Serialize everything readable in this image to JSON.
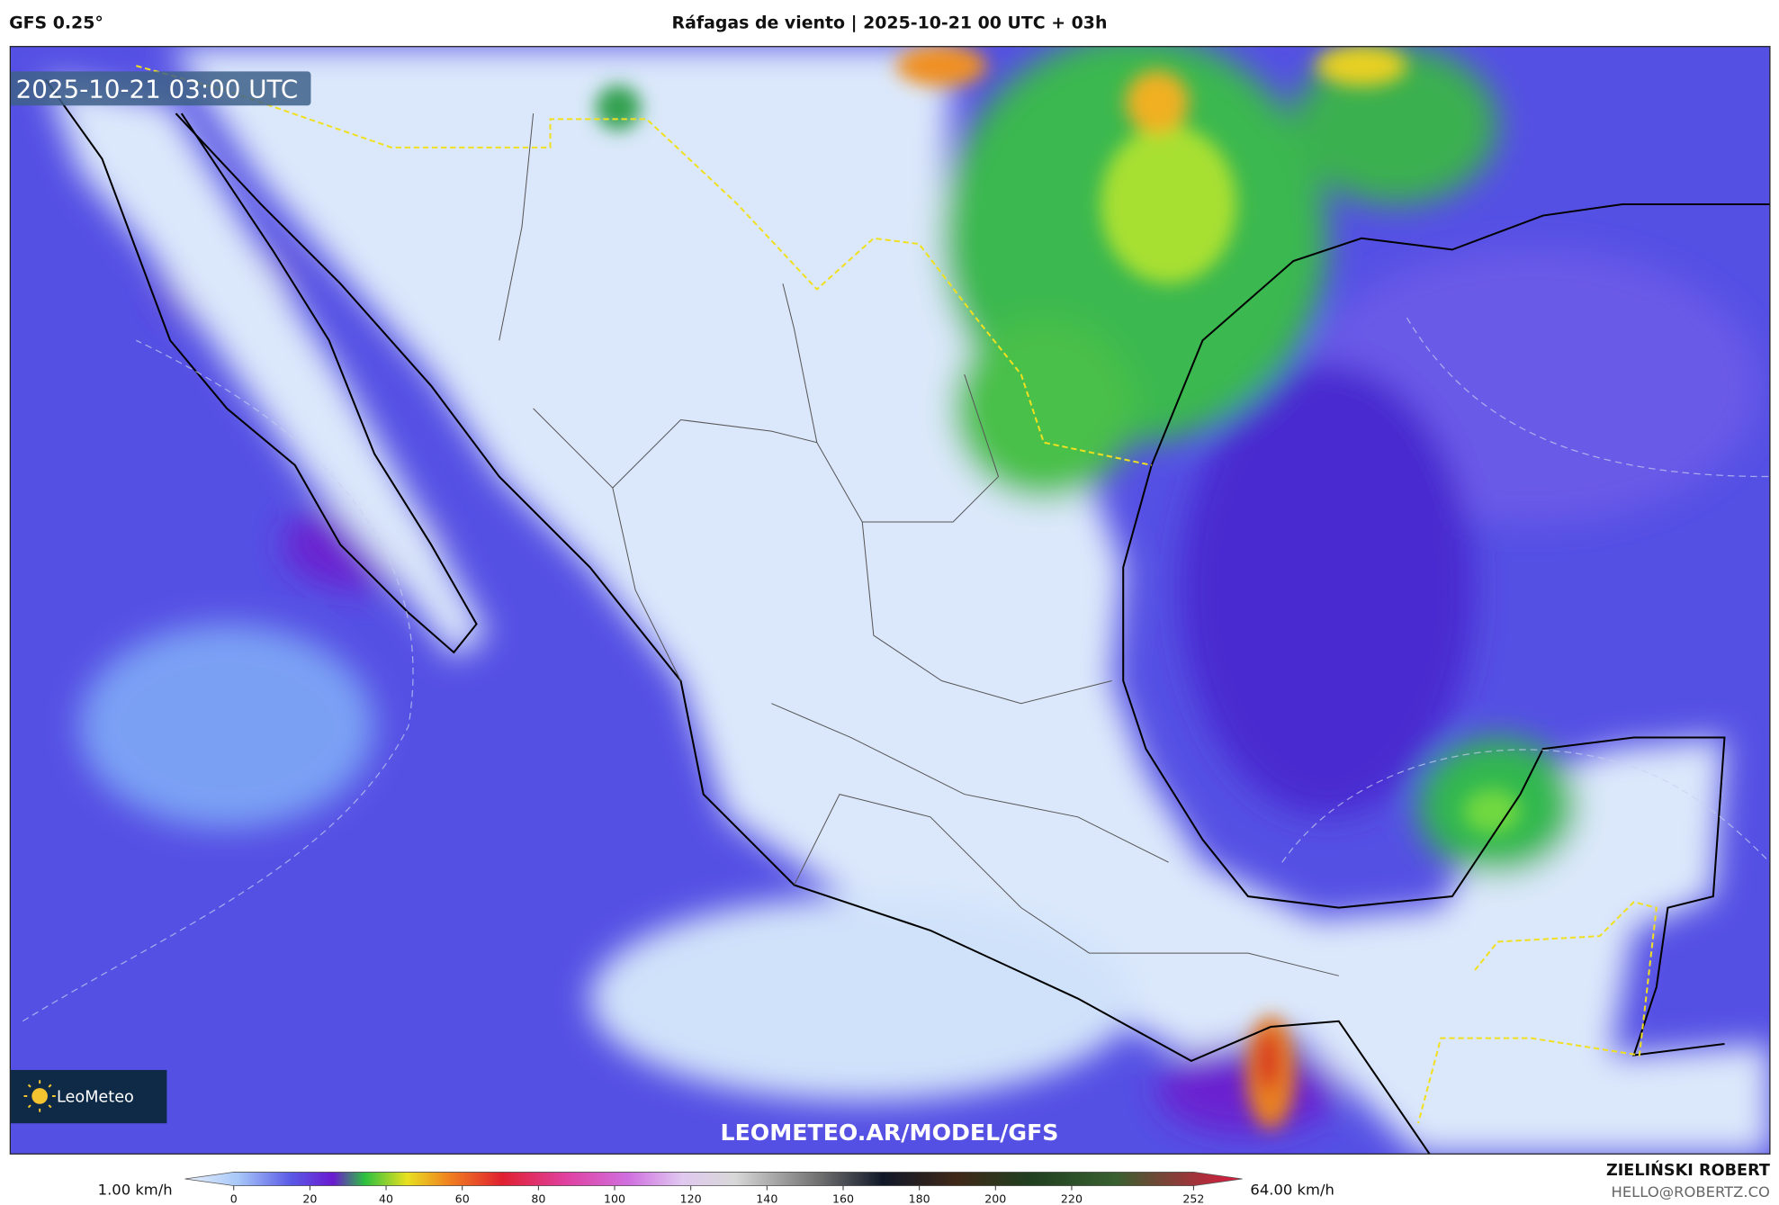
{
  "header": {
    "model": "GFS 0.25°",
    "title": "Ráfagas de viento | 2025-10-21 00 UTC + 03h"
  },
  "map": {
    "timestamp": "2025-10-21 03:00 UTC",
    "logo": "LeoMeteo",
    "url": "LEOMETEO.AR/MODEL/GFS"
  },
  "colorbar": {
    "min_label": "1.00 km/h",
    "max_label": "64.00 km/h",
    "ticks": [
      0,
      20,
      40,
      60,
      80,
      100,
      120,
      140,
      160,
      180,
      200,
      220,
      252
    ]
  },
  "credit": {
    "name": "ZIELIŃSKI ROBERT",
    "email": "HELLO@ROBERTZ.CO"
  }
}
